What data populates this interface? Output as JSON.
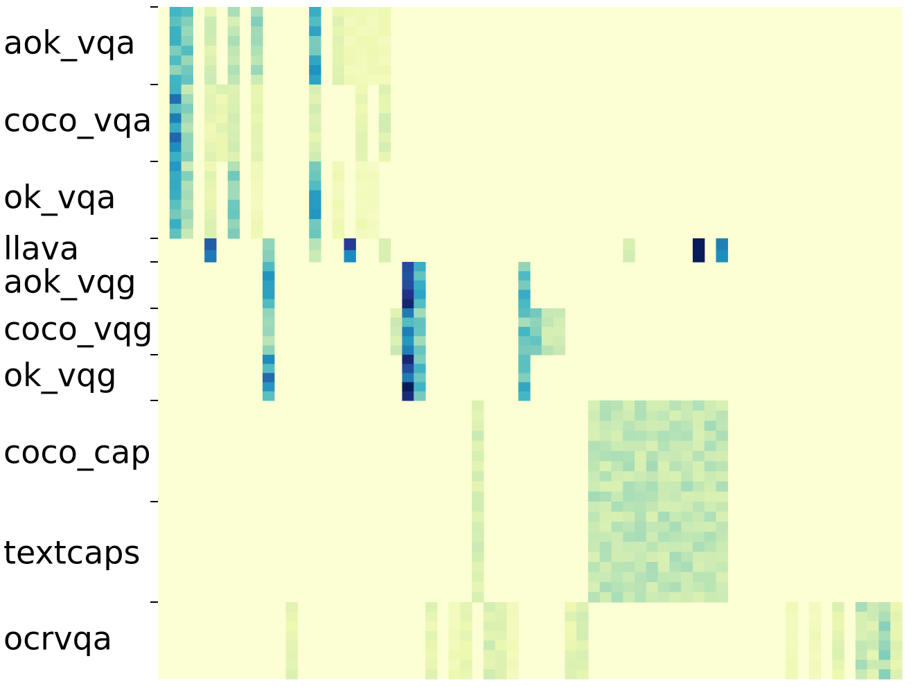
{
  "chart_data": {
    "type": "heatmap",
    "title": "",
    "xlabel": "",
    "ylabel": "",
    "colormap": "YlGnBu",
    "grid": false,
    "legend": "none",
    "n_cols": 64,
    "rows": [
      "aok_vqa",
      "coco_vqa",
      "ok_vqa",
      "llava",
      "aok_vqg",
      "coco_vqg",
      "ok_vqg",
      "coco_cap",
      "textcaps",
      "ocrvqa"
    ],
    "row_sample_counts": [
      8,
      8,
      8,
      2,
      5,
      5,
      5,
      10,
      10,
      8
    ],
    "note_values": "values are normalized intensities 0-1 per row-group and column index",
    "blocks": [
      {
        "row": "aok_vqa",
        "cols": [
          [
            1,
            0.45
          ],
          [
            2,
            0.4
          ],
          [
            4,
            0.2
          ],
          [
            6,
            0.25
          ],
          [
            8,
            0.3
          ],
          [
            13,
            0.5
          ],
          [
            15,
            0.15
          ],
          [
            16,
            0.1
          ],
          [
            17,
            0.1
          ],
          [
            18,
            0.1
          ],
          [
            19,
            0.1
          ]
        ]
      },
      {
        "row": "coco_vqa",
        "cols": [
          [
            1,
            0.6
          ],
          [
            2,
            0.3
          ],
          [
            4,
            0.15
          ],
          [
            5,
            0.15
          ],
          [
            6,
            0.22
          ],
          [
            8,
            0.15
          ],
          [
            13,
            0.18
          ],
          [
            17,
            0.15
          ],
          [
            19,
            0.18
          ]
        ]
      },
      {
        "row": "ok_vqa",
        "cols": [
          [
            1,
            0.5
          ],
          [
            2,
            0.3
          ],
          [
            4,
            0.15
          ],
          [
            6,
            0.35
          ],
          [
            8,
            0.1
          ],
          [
            13,
            0.5
          ],
          [
            15,
            0.1
          ],
          [
            17,
            0.1
          ],
          [
            18,
            0.08
          ]
        ]
      },
      {
        "row": "llava",
        "cols": [
          [
            4,
            0.8
          ],
          [
            9,
            0.3
          ],
          [
            13,
            0.25
          ],
          [
            16,
            0.8
          ],
          [
            19,
            0.2
          ],
          [
            40,
            0.25
          ],
          [
            46,
            0.85
          ],
          [
            48,
            0.55
          ]
        ]
      },
      {
        "row": "aok_vqg",
        "cols": [
          [
            9,
            0.6
          ],
          [
            21,
            0.95
          ],
          [
            22,
            0.55
          ],
          [
            31,
            0.45
          ]
        ]
      },
      {
        "row": "coco_vqg",
        "cols": [
          [
            9,
            0.35
          ],
          [
            20,
            0.2
          ],
          [
            21,
            0.55
          ],
          [
            22,
            0.4
          ],
          [
            31,
            0.4
          ],
          [
            32,
            0.35
          ],
          [
            33,
            0.25
          ],
          [
            34,
            0.2
          ]
        ]
      },
      {
        "row": "ok_vqg",
        "cols": [
          [
            9,
            0.6
          ],
          [
            21,
            0.9
          ],
          [
            22,
            0.5
          ],
          [
            31,
            0.45
          ]
        ]
      },
      {
        "row": "coco_cap",
        "cols": [
          [
            27,
            0.2
          ],
          [
            37,
            0.25
          ],
          [
            38,
            0.25
          ],
          [
            39,
            0.25
          ],
          [
            40,
            0.25
          ],
          [
            41,
            0.25
          ],
          [
            42,
            0.25
          ],
          [
            43,
            0.25
          ],
          [
            44,
            0.25
          ],
          [
            45,
            0.25
          ],
          [
            46,
            0.25
          ],
          [
            47,
            0.25
          ],
          [
            48,
            0.25
          ]
        ]
      },
      {
        "row": "textcaps",
        "cols": [
          [
            27,
            0.2
          ],
          [
            37,
            0.25
          ],
          [
            38,
            0.25
          ],
          [
            39,
            0.25
          ],
          [
            40,
            0.25
          ],
          [
            41,
            0.25
          ],
          [
            42,
            0.25
          ],
          [
            43,
            0.25
          ],
          [
            44,
            0.25
          ],
          [
            45,
            0.25
          ],
          [
            46,
            0.25
          ],
          [
            47,
            0.25
          ],
          [
            48,
            0.25
          ]
        ]
      },
      {
        "row": "ocrvqa",
        "cols": [
          [
            11,
            0.15
          ],
          [
            23,
            0.15
          ],
          [
            25,
            0.1
          ],
          [
            26,
            0.15
          ],
          [
            28,
            0.2
          ],
          [
            29,
            0.15
          ],
          [
            30,
            0.1
          ],
          [
            35,
            0.15
          ],
          [
            36,
            0.2
          ],
          [
            54,
            0.1
          ],
          [
            56,
            0.1
          ],
          [
            58,
            0.15
          ],
          [
            60,
            0.25
          ],
          [
            61,
            0.2
          ],
          [
            62,
            0.3
          ],
          [
            63,
            0.15
          ]
        ]
      }
    ]
  }
}
